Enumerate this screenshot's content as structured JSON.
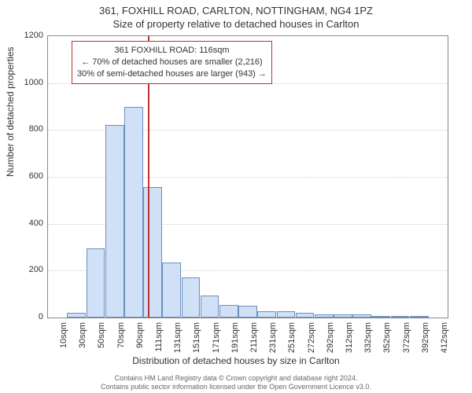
{
  "title_line1": "361, FOXHILL ROAD, CARLTON, NOTTINGHAM, NG4 1PZ",
  "title_line2": "Size of property relative to detached houses in Carlton",
  "y_axis_label": "Number of detached properties",
  "x_axis_label": "Distribution of detached houses by size in Carlton",
  "footer_line1": "Contains HM Land Registry data © Crown copyright and database right 2024.",
  "footer_line2": "Contains public sector information licensed under the Open Government Licence v3.0.",
  "chart": {
    "type": "histogram",
    "background_color": "#ffffff",
    "border_color": "#888888",
    "grid_color": "#cccccc",
    "bar_fill": "#cfe0f7",
    "bar_stroke": "#6c8fbf",
    "refline_color": "#bb3333",
    "annotation_border": "#bb3333",
    "ylim": [
      0,
      1200
    ],
    "yticks": [
      0,
      200,
      400,
      600,
      800,
      1000,
      1200
    ],
    "x_tick_labels": [
      "10sqm",
      "30sqm",
      "50sqm",
      "70sqm",
      "90sqm",
      "111sqm",
      "131sqm",
      "151sqm",
      "171sqm",
      "191sqm",
      "211sqm",
      "231sqm",
      "251sqm",
      "272sqm",
      "292sqm",
      "312sqm",
      "332sqm",
      "352sqm",
      "372sqm",
      "392sqm",
      "412sqm"
    ],
    "bar_values": [
      0,
      20,
      295,
      820,
      900,
      555,
      235,
      170,
      95,
      55,
      50,
      28,
      28,
      20,
      15,
      15,
      12,
      8,
      5,
      3,
      0
    ],
    "reference_bin_index": 5.25,
    "annotation": {
      "line1": "361 FOXHILL ROAD: 116sqm",
      "line2": "← 70% of detached houses are smaller (2,216)",
      "line3": "30% of semi-detached houses are larger (943) →"
    },
    "label_fontsize": 12,
    "tick_fontsize": 11,
    "title_fontsize": 13,
    "annotation_fontsize": 11
  }
}
